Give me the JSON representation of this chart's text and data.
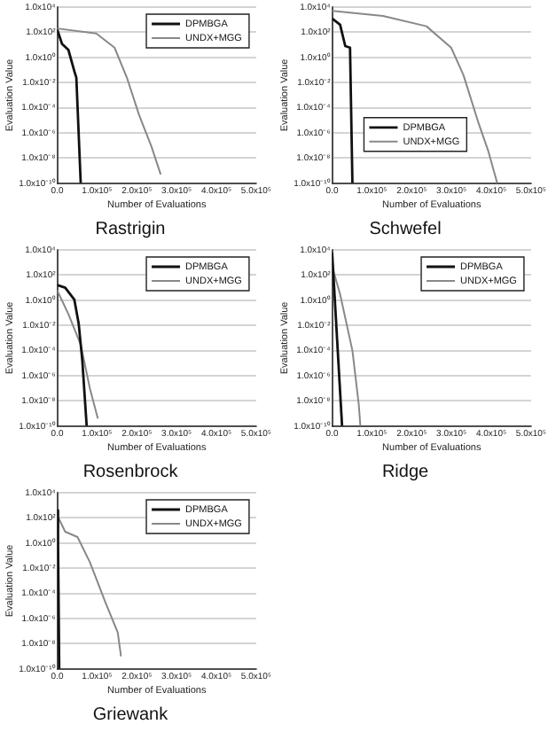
{
  "chart_data": [
    {
      "type": "line",
      "title": "Rastrigin",
      "xlabel": "Number of Evaluations",
      "ylabel": "Evaluation Value",
      "log": "y",
      "grid": "y",
      "legend": "top right",
      "xlim": [
        0,
        500000
      ],
      "xticks": [
        {
          "value": 0,
          "label": "0.0"
        },
        {
          "value": 100000,
          "label": "1.0x10⁵"
        },
        {
          "value": 200000,
          "label": "2.0x10⁵"
        },
        {
          "value": 300000,
          "label": "3.0x10⁵"
        },
        {
          "value": 400000,
          "label": "4.0x10⁵"
        },
        {
          "value": 500000,
          "label": "5.0x10⁵"
        }
      ],
      "ylim": [
        1e-10,
        10000.0
      ],
      "yticks": [
        {
          "value": 10000.0,
          "label": "1.0x10⁴"
        },
        {
          "value": 100.0,
          "label": "1.0x10²"
        },
        {
          "value": 1,
          "label": "1.0x10⁰"
        },
        {
          "value": 0.01,
          "label": "1.0x10⁻²"
        },
        {
          "value": 0.0001,
          "label": "1.0x10⁻⁴"
        },
        {
          "value": 1e-06,
          "label": "1.0x10⁻⁶"
        },
        {
          "value": 1e-08,
          "label": "1.0x10⁻⁸"
        },
        {
          "value": 1e-10,
          "label": "1.0x10⁻¹⁰"
        }
      ],
      "series": [
        {
          "name": "DPMBGA",
          "color": "#111111",
          "x": [
            0,
            12000,
            28000,
            43000,
            48000,
            59000
          ],
          "values": [
            160,
            12,
            4,
            0.08,
            0.025,
            1e-10
          ]
        },
        {
          "name": "UNDX+MGG",
          "color": "#888888",
          "x": [
            0,
            98000,
            144000,
            175000,
            206000,
            237000,
            260000
          ],
          "values": [
            200,
            80,
            6,
            0.025,
            2.5e-05,
            8e-08,
            5e-10
          ]
        }
      ]
    },
    {
      "type": "line",
      "title": "Schwefel",
      "xlabel": "Number of Evaluations",
      "ylabel": "Evaluation Value",
      "log": "y",
      "grid": "y",
      "legend": "bottom",
      "xlim": [
        0,
        500000
      ],
      "xticks": [
        {
          "value": 0,
          "label": "0.0"
        },
        {
          "value": 100000,
          "label": "1.0x10⁵"
        },
        {
          "value": 200000,
          "label": "2.0x10⁵"
        },
        {
          "value": 300000,
          "label": "3.0x10⁵"
        },
        {
          "value": 400000,
          "label": "4.0x10⁵"
        },
        {
          "value": 500000,
          "label": "5.0x10⁵"
        }
      ],
      "ylim": [
        1e-10,
        10000.0
      ],
      "yticks": [
        {
          "value": 10000.0,
          "label": "1.0x10⁴"
        },
        {
          "value": 100.0,
          "label": "1.0x10²"
        },
        {
          "value": 1,
          "label": "1.0x10⁰"
        },
        {
          "value": 0.01,
          "label": "1.0x10⁻²"
        },
        {
          "value": 0.0001,
          "label": "1.0x10⁻⁴"
        },
        {
          "value": 1e-06,
          "label": "1.0x10⁻⁶"
        },
        {
          "value": 1e-08,
          "label": "1.0x10⁻⁸"
        },
        {
          "value": 1e-10,
          "label": "1.0x10⁻¹⁰"
        }
      ],
      "series": [
        {
          "name": "DPMBGA",
          "color": "#111111",
          "x": [
            0,
            20000,
            33000,
            45000,
            51000
          ],
          "values": [
            1250,
            400,
            8,
            6,
            1e-10
          ]
        },
        {
          "name": "UNDX+MGG",
          "color": "#888888",
          "x": [
            0,
            128000,
            237000,
            299000,
            330000,
            368000,
            392000,
            415000
          ],
          "values": [
            5000,
            2000,
            300,
            6,
            0.04,
            6e-06,
            4e-08,
            1e-10
          ]
        }
      ]
    },
    {
      "type": "line",
      "title": "Rosenbrock",
      "xlabel": "Number of Evaluations",
      "ylabel": "Evaluation Value",
      "log": "y",
      "grid": "y",
      "legend": "top right",
      "xlim": [
        0,
        500000
      ],
      "xticks": [
        {
          "value": 0,
          "label": "0.0"
        },
        {
          "value": 100000,
          "label": "1.0x10⁵"
        },
        {
          "value": 200000,
          "label": "2.0x10⁵"
        },
        {
          "value": 300000,
          "label": "3.0x10⁵"
        },
        {
          "value": 400000,
          "label": "4.0x10⁵"
        },
        {
          "value": 500000,
          "label": "5.0x10⁵"
        }
      ],
      "ylim": [
        1e-10,
        10000.0
      ],
      "yticks": [
        {
          "value": 10000.0,
          "label": "1.0x10⁴"
        },
        {
          "value": 100.0,
          "label": "1.0x10²"
        },
        {
          "value": 1,
          "label": "1.0x10⁰"
        },
        {
          "value": 0.01,
          "label": "1.0x10⁻²"
        },
        {
          "value": 0.0001,
          "label": "1.0x10⁻⁴"
        },
        {
          "value": 1e-06,
          "label": "1.0x10⁻⁶"
        },
        {
          "value": 1e-08,
          "label": "1.0x10⁻⁸"
        },
        {
          "value": 1e-10,
          "label": "1.0x10⁻¹⁰"
        }
      ],
      "series": [
        {
          "name": "DPMBGA",
          "color": "#111111",
          "x": [
            0,
            20000,
            43000,
            54000,
            63000,
            74000
          ],
          "values": [
            16,
            10,
            1.1,
            0.013,
            1.6e-05,
            1e-10
          ]
        },
        {
          "name": "UNDX+MGG",
          "color": "#888888",
          "x": [
            0,
            28000,
            59000,
            82000,
            102000
          ],
          "values": [
            6,
            0.08,
            0.0003,
            1e-07,
            4e-10
          ]
        }
      ]
    },
    {
      "type": "line",
      "title": "Ridge",
      "xlabel": "Number of Evaluations",
      "ylabel": "Evaluation Value",
      "log": "y",
      "grid": "y",
      "legend": "top right",
      "xlim": [
        0,
        500000
      ],
      "xticks": [
        {
          "value": 0,
          "label": "0.0"
        },
        {
          "value": 100000,
          "label": "1.0x10⁵"
        },
        {
          "value": 200000,
          "label": "2.0x10⁵"
        },
        {
          "value": 300000,
          "label": "3.0x10⁵"
        },
        {
          "value": 400000,
          "label": "4.0x10⁵"
        },
        {
          "value": 500000,
          "label": "5.0x10⁵"
        }
      ],
      "ylim": [
        1e-10,
        10000.0
      ],
      "yticks": [
        {
          "value": 10000.0,
          "label": "1.0x10⁴"
        },
        {
          "value": 100.0,
          "label": "1.0x10²"
        },
        {
          "value": 1,
          "label": "1.0x10⁰"
        },
        {
          "value": 0.01,
          "label": "1.0x10⁻²"
        },
        {
          "value": 0.0001,
          "label": "1.0x10⁻⁴"
        },
        {
          "value": 1e-06,
          "label": "1.0x10⁻⁶"
        },
        {
          "value": 1e-08,
          "label": "1.0x10⁻⁸"
        },
        {
          "value": 1e-10,
          "label": "1.0x10⁻¹⁰"
        }
      ],
      "series": [
        {
          "name": "DPMBGA",
          "color": "#111111",
          "x": [
            0,
            25000
          ],
          "values": [
            6000,
            1e-10
          ]
        },
        {
          "name": "UNDX+MGG",
          "color": "#888888",
          "x": [
            0,
            20000,
            51000,
            67000,
            71000
          ],
          "values": [
            500,
            3,
            0.0001,
            5e-09,
            1e-10
          ]
        }
      ]
    },
    {
      "type": "line",
      "title": "Griewank",
      "xlabel": "Number of Evaluations",
      "ylabel": "Evaluation Value",
      "log": "y",
      "grid": "y",
      "legend": "top right",
      "xlim": [
        0,
        500000
      ],
      "xticks": [
        {
          "value": 0,
          "label": "0.0"
        },
        {
          "value": 100000,
          "label": "1.0x10⁵"
        },
        {
          "value": 200000,
          "label": "2.0x10⁵"
        },
        {
          "value": 300000,
          "label": "3.0x10⁵"
        },
        {
          "value": 400000,
          "label": "4.0x10⁵"
        },
        {
          "value": 500000,
          "label": "5.0x10⁵"
        }
      ],
      "ylim": [
        1e-10,
        10000.0
      ],
      "yticks": [
        {
          "value": 10000.0,
          "label": "1.0x10⁴"
        },
        {
          "value": 100.0,
          "label": "1.0x10²"
        },
        {
          "value": 1,
          "label": "1.0x10⁰"
        },
        {
          "value": 0.01,
          "label": "1.0x10⁻²"
        },
        {
          "value": 0.0001,
          "label": "1.0x10⁻⁴"
        },
        {
          "value": 1e-06,
          "label": "1.0x10⁻⁶"
        },
        {
          "value": 1e-08,
          "label": "1.0x10⁻⁸"
        },
        {
          "value": 1e-10,
          "label": "1.0x10⁻¹⁰"
        }
      ],
      "series": [
        {
          "name": "DPMBGA",
          "color": "#111111",
          "x": [
            0,
            2000,
            5000
          ],
          "values": [
            400,
            1,
            1e-10
          ]
        },
        {
          "name": "UNDX+MGG",
          "color": "#888888",
          "x": [
            0,
            20000,
            51000,
            82000,
            121000,
            152000,
            159000,
            160000
          ],
          "values": [
            160,
            8,
            3,
            0.03,
            2e-05,
            8e-08,
            2e-09,
            1e-09
          ]
        }
      ]
    }
  ]
}
